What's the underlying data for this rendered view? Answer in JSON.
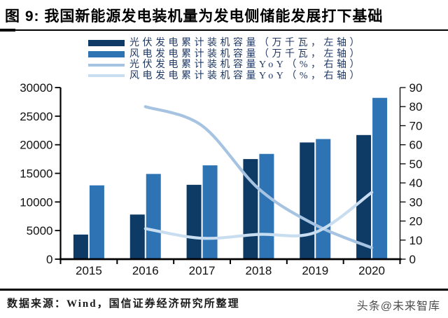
{
  "title": "图 9: 我国新能源发电装机量为发电侧储能发展打下基础",
  "legend": {
    "items": [
      {
        "label": "光伏发电累计装机容量（万千瓦，左轴）",
        "color": "#0e3a66",
        "type": "bar"
      },
      {
        "label": "风电发电累计装机容量（万千瓦，左轴）",
        "color": "#2e74b5",
        "type": "bar"
      },
      {
        "label": "光伏发电累计装机容量YoY（%，右轴）",
        "color": "#a6c3e2",
        "type": "line"
      },
      {
        "label": "风电发电累计装机容量YoY（%，右轴）",
        "color": "#c9ddf1",
        "type": "line"
      }
    ]
  },
  "chart_data": {
    "type": "bar",
    "subtype": "grouped-bars-with-lines",
    "categories": [
      "2015",
      "2016",
      "2017",
      "2018",
      "2019",
      "2020"
    ],
    "bar_series": [
      {
        "name": "光伏发电累计装机容量（万千瓦，左轴）",
        "axis": "left",
        "color": "#0e3a66",
        "values": [
          4300,
          7800,
          13000,
          17500,
          20400,
          21700
        ]
      },
      {
        "name": "风电发电累计装机容量（万千瓦，左轴）",
        "axis": "left",
        "color": "#2e74b5",
        "values": [
          12900,
          14900,
          16400,
          18400,
          21000,
          28200
        ]
      }
    ],
    "line_series": [
      {
        "name": "光伏发电累计装机容量YoY（%，右轴）",
        "axis": "right",
        "color": "#a6c3e2",
        "values": [
          null,
          80,
          70,
          37,
          18,
          6
        ]
      },
      {
        "name": "风电发电累计装机容量YoY（%，右轴）",
        "axis": "right",
        "color": "#c9ddf1",
        "values": [
          null,
          16,
          11,
          13,
          14,
          35
        ]
      }
    ],
    "left_axis": {
      "label": "万千瓦",
      "min": 0,
      "max": 30000,
      "ticks": [
        0,
        5000,
        10000,
        15000,
        20000,
        25000,
        30000
      ]
    },
    "right_axis": {
      "label": "%",
      "min": 0,
      "max": 90,
      "ticks": [
        0,
        10,
        20,
        30,
        40,
        50,
        60,
        70,
        80,
        90
      ]
    },
    "grid": false,
    "legend_position": "top"
  },
  "footer": {
    "source": "数据来源：Wind，国信证券经济研究所整理",
    "watermark": "头条@未来智库"
  }
}
